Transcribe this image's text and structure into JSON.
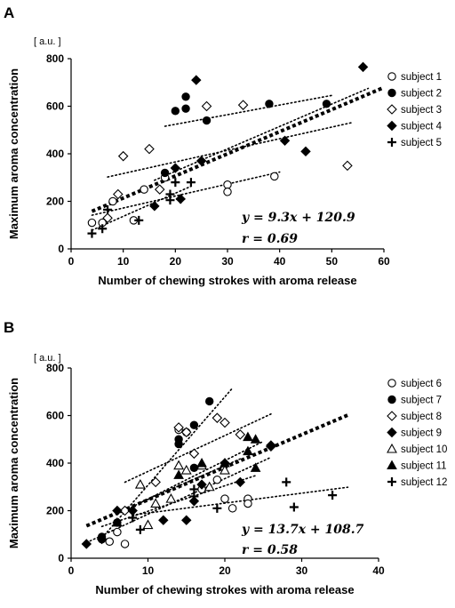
{
  "chart_data": [
    {
      "panel": "A",
      "type": "scatter",
      "unit_label": "[ a.u. ]",
      "xlabel": "Number of chewing strokes with aroma release",
      "ylabel": "Maximum aroma concentration",
      "xlim": [
        0,
        60
      ],
      "ylim": [
        0,
        800
      ],
      "xticks": [
        "0",
        "10",
        "20",
        "30",
        "40",
        "50",
        "60"
      ],
      "yticks": [
        "0",
        "200",
        "400",
        "600",
        "800"
      ],
      "equation": "y = 9.3x + 120.9",
      "r_label": "r = 0.69",
      "overall_fit": {
        "slope": 9.3,
        "intercept": 120.9,
        "x_range": [
          4,
          60
        ]
      },
      "legend_position": "right",
      "series": [
        {
          "name": "subject 1",
          "marker": "open-circle",
          "points": [
            [
              4,
              110
            ],
            [
              6,
              110
            ],
            [
              8,
              200
            ],
            [
              12,
              120
            ],
            [
              14,
              250
            ],
            [
              18,
              300
            ],
            [
              30,
              270
            ],
            [
              30,
              240
            ],
            [
              39,
              305
            ]
          ],
          "fit_x_range": [
            4,
            40
          ]
        },
        {
          "name": "subject 2",
          "marker": "filled-circle",
          "points": [
            [
              18,
              320
            ],
            [
              20,
              580
            ],
            [
              22,
              640
            ],
            [
              22,
              590
            ],
            [
              26,
              540
            ],
            [
              38,
              610
            ],
            [
              49,
              610
            ]
          ],
          "fit_x_range": [
            18,
            50
          ]
        },
        {
          "name": "subject 3",
          "marker": "open-diamond",
          "points": [
            [
              7,
              130
            ],
            [
              9,
              230
            ],
            [
              10,
              390
            ],
            [
              15,
              420
            ],
            [
              17,
              250
            ],
            [
              26,
              600
            ],
            [
              33,
              605
            ],
            [
              53,
              350
            ]
          ],
          "fit_x_range": [
            7,
            54
          ]
        },
        {
          "name": "subject 4",
          "marker": "filled-diamond",
          "points": [
            [
              16,
              180
            ],
            [
              20,
              340
            ],
            [
              21,
              210
            ],
            [
              24,
              710
            ],
            [
              25,
              370
            ],
            [
              41,
              455
            ],
            [
              45,
              410
            ],
            [
              56,
              765
            ]
          ],
          "fit_x_range": [
            16,
            57
          ]
        },
        {
          "name": "subject 5",
          "marker": "plus",
          "points": [
            [
              4,
              65
            ],
            [
              6,
              85
            ],
            [
              7,
              165
            ],
            [
              13,
              120
            ],
            [
              19,
              230
            ],
            [
              19,
              205
            ],
            [
              20,
              280
            ],
            [
              21,
              210
            ],
            [
              23,
              280
            ]
          ],
          "fit_x_range": [
            4,
            23
          ]
        }
      ]
    },
    {
      "panel": "B",
      "type": "scatter",
      "unit_label": "[ a.u. ]",
      "xlabel": "Number of chewing strokes with aroma release",
      "ylabel": "Maximum aroma concentration",
      "xlim": [
        0,
        40
      ],
      "ylim": [
        0,
        800
      ],
      "xticks": [
        "0",
        "10",
        "20",
        "30",
        "40"
      ],
      "yticks": [
        "0",
        "200",
        "400",
        "600",
        "800"
      ],
      "equation": "y = 13.7x + 108.7",
      "r_label": "r = 0.58",
      "overall_fit": {
        "slope": 13.7,
        "intercept": 108.7,
        "x_range": [
          2,
          36
        ]
      },
      "legend_position": "right",
      "series": [
        {
          "name": "subject 6",
          "marker": "open-circle",
          "points": [
            [
              4,
              80
            ],
            [
              5,
              70
            ],
            [
              6,
              110
            ],
            [
              7,
              60
            ],
            [
              14,
              540
            ],
            [
              15,
              530
            ],
            [
              17,
              290
            ],
            [
              19,
              330
            ],
            [
              20,
              250
            ],
            [
              21,
              210
            ],
            [
              23,
              250
            ],
            [
              23,
              230
            ]
          ],
          "fit_x_range": [
            4,
            24
          ]
        },
        {
          "name": "subject 7",
          "marker": "filled-circle",
          "points": [
            [
              4,
              90
            ],
            [
              6,
              150
            ],
            [
              14,
              500
            ],
            [
              14,
              480
            ],
            [
              16,
              560
            ],
            [
              16,
              380
            ],
            [
              18,
              660
            ]
          ],
          "fit_x_range": [
            4,
            21
          ]
        },
        {
          "name": "subject 8",
          "marker": "open-diamond",
          "points": [
            [
              7,
              200
            ],
            [
              11,
              320
            ],
            [
              14,
              550
            ],
            [
              15,
              530
            ],
            [
              16,
              440
            ],
            [
              19,
              590
            ],
            [
              20,
              570
            ],
            [
              22,
              520
            ],
            [
              26,
              470
            ]
          ],
          "fit_x_range": [
            7,
            26
          ]
        },
        {
          "name": "subject 9",
          "marker": "filled-diamond",
          "points": [
            [
              2,
              60
            ],
            [
              4,
              80
            ],
            [
              6,
              200
            ],
            [
              8,
              200
            ],
            [
              12,
              160
            ],
            [
              15,
              160
            ],
            [
              16,
              240
            ],
            [
              17,
              310
            ],
            [
              20,
              400
            ],
            [
              22,
              320
            ],
            [
              26,
              475
            ]
          ],
          "fit_x_range": [
            2,
            26
          ]
        },
        {
          "name": "subject 10",
          "marker": "open-triangle",
          "points": [
            [
              9,
              310
            ],
            [
              10,
              140
            ],
            [
              11,
              230
            ],
            [
              13,
              250
            ],
            [
              14,
              390
            ],
            [
              15,
              370
            ],
            [
              17,
              390
            ],
            [
              18,
              300
            ],
            [
              20,
              370
            ]
          ],
          "fit_x_range": [
            9,
            22
          ]
        },
        {
          "name": "subject 11",
          "marker": "filled-triangle",
          "points": [
            [
              6,
              150
            ],
            [
              14,
              350
            ],
            [
              17,
              400
            ],
            [
              20,
              400
            ],
            [
              23,
              510
            ],
            [
              23,
              450
            ],
            [
              24,
              500
            ],
            [
              24,
              380
            ]
          ],
          "fit_x_range": [
            6,
            25
          ]
        },
        {
          "name": "subject 12",
          "marker": "plus",
          "points": [
            [
              8,
              170
            ],
            [
              9,
              120
            ],
            [
              16,
              260
            ],
            [
              16,
              290
            ],
            [
              19,
              210
            ],
            [
              28,
              320
            ],
            [
              29,
              215
            ],
            [
              34,
              265
            ]
          ],
          "fit_x_range": [
            8,
            36
          ]
        }
      ]
    }
  ]
}
